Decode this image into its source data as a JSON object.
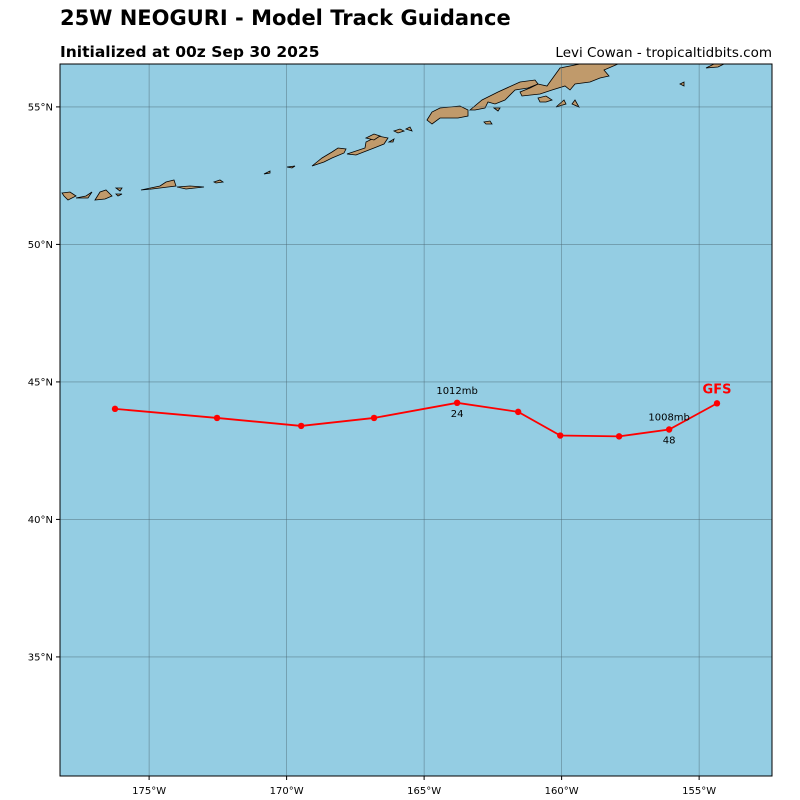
{
  "header": {
    "title": "25W NEOGURI - Model Track Guidance",
    "subtitle": "Initialized at 00z Sep 30 2025",
    "credit": "Levi Cowan - tropicaltidbits.com"
  },
  "map": {
    "extent": {
      "lon": [
        -178.24,
        -152.35
      ],
      "lat": [
        30.67,
        56.56
      ]
    },
    "ocean_color": "#94cde3",
    "land_color": "#c09a6b",
    "lat_ticks": [
      {
        "v": 55,
        "label": "55°N"
      },
      {
        "v": 50,
        "label": "50°N"
      },
      {
        "v": 45,
        "label": "45°N"
      },
      {
        "v": 40,
        "label": "40°N"
      },
      {
        "v": 35,
        "label": "35°N"
      }
    ],
    "lon_ticks": [
      {
        "v": -175,
        "label": "175°W"
      },
      {
        "v": -170,
        "label": "170°W"
      },
      {
        "v": -165,
        "label": "165°W"
      },
      {
        "v": -160,
        "label": "160°W"
      },
      {
        "v": -155,
        "label": "155°W"
      }
    ],
    "grid": true
  },
  "tracks": [
    {
      "model": "GFS",
      "color": "#ff0000",
      "points": [
        {
          "lon": -176.24,
          "lat": 44.02
        },
        {
          "lon": -172.53,
          "lat": 43.69
        },
        {
          "lon": -169.47,
          "lat": 43.4
        },
        {
          "lon": -166.82,
          "lat": 43.69
        },
        {
          "lon": -163.8,
          "lat": 44.24
        },
        {
          "lon": -161.58,
          "lat": 43.91
        },
        {
          "lon": -160.05,
          "lat": 43.05
        },
        {
          "lon": -157.91,
          "lat": 43.02
        },
        {
          "lon": -156.09,
          "lat": 43.27
        },
        {
          "lon": -154.35,
          "lat": 44.22
        }
      ],
      "annotations": [
        {
          "point": 4,
          "pressure": "1012mb",
          "hour": "24"
        },
        {
          "point": 8,
          "pressure": "1008mb",
          "hour": "48"
        }
      ]
    }
  ]
}
